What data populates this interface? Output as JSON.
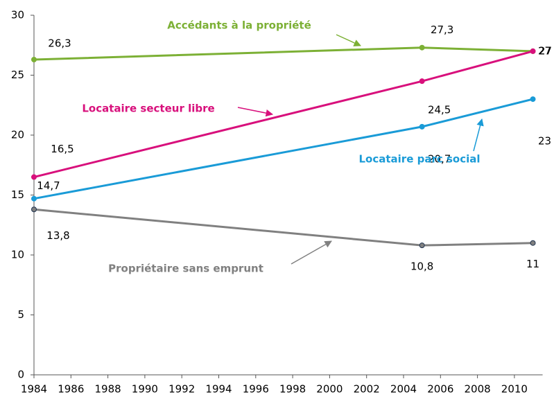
{
  "chart_data": {
    "type": "line",
    "x": [
      1984,
      2005,
      2011
    ],
    "series": [
      {
        "name": "Accédants à la propriété",
        "color": "#7cb035",
        "values": [
          26.3,
          27.3,
          27
        ],
        "value_labels": [
          "26,3",
          "27,3",
          "27"
        ]
      },
      {
        "name": "Locataire secteur libre",
        "color": "#d8107c",
        "values": [
          16.5,
          24.5,
          27
        ],
        "value_labels": [
          "16,5",
          "24,5",
          "27"
        ]
      },
      {
        "name": "Locataire parc social",
        "color": "#1a9bd7",
        "values": [
          14.7,
          20.7,
          23
        ],
        "value_labels": [
          "14,7",
          "20,7",
          "23"
        ]
      },
      {
        "name": "Propriétaire sans emprunt",
        "color": "#808080",
        "values": [
          13.8,
          10.8,
          11
        ],
        "value_labels": [
          "13,8",
          "10,8",
          "11"
        ]
      }
    ],
    "xlim": [
      1984,
      2011.3
    ],
    "xticks": [
      1984,
      1986,
      1988,
      1990,
      1992,
      1994,
      1996,
      1998,
      2000,
      2002,
      2004,
      2006,
      2008,
      2010
    ],
    "ylim": [
      0,
      30
    ],
    "yticks": [
      0,
      5,
      10,
      15,
      20,
      25,
      30
    ]
  }
}
